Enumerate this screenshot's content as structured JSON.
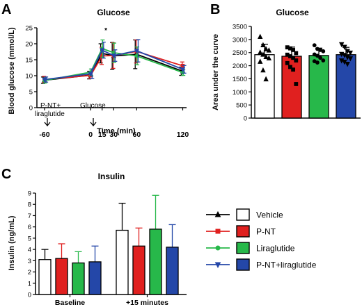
{
  "panels": {
    "a": "A",
    "b": "B",
    "c": "C"
  },
  "colors": {
    "vehicle": "#000000",
    "pnt": "#e0201f",
    "lira": "#27b84a",
    "combo": "#2447a8",
    "vehicle_fill": "#ffffff"
  },
  "legend": {
    "items": [
      {
        "name": "Vehicle",
        "color": "#000000",
        "fill": "#ffffff",
        "marker": "triangle-up"
      },
      {
        "name": "P-NT",
        "color": "#e0201f",
        "fill": "#e0201f",
        "marker": "square"
      },
      {
        "name": "Liraglutide",
        "color": "#27b84a",
        "fill": "#27b84a",
        "marker": "circle"
      },
      {
        "name": "P-NT+liraglutide",
        "color": "#2447a8",
        "fill": "#2447a8",
        "marker": "triangle-down"
      }
    ]
  },
  "chart_data": [
    {
      "type": "line",
      "title": "Glucose",
      "xlabel": "Time (min)",
      "ylabel": "Blood glucose (mmol/L)",
      "xlim": [
        -70,
        125
      ],
      "ylim": [
        0,
        25
      ],
      "xticks": [
        -60,
        0,
        15,
        30,
        60,
        120
      ],
      "yticks": [
        0,
        5,
        10,
        15,
        20,
        25
      ],
      "annotations": {
        "injection1": "P-NT+",
        "injection2": "liraglutide",
        "injection3": "Glucose",
        "significance": "*"
      },
      "x": [
        -60,
        0,
        15,
        30,
        60,
        120
      ],
      "series": [
        {
          "name": "Vehicle",
          "values": [
            8.6,
            10.2,
            17.0,
            16.2,
            16.7,
            11.4
          ],
          "errors": [
            1.0,
            1.2,
            3.0,
            4.2,
            4.5,
            1.3
          ]
        },
        {
          "name": "P-NT",
          "values": [
            8.8,
            10.1,
            16.2,
            16.3,
            17.6,
            13.1
          ],
          "errors": [
            1.0,
            1.0,
            2.7,
            4.0,
            3.6,
            1.2
          ]
        },
        {
          "name": "Liraglutide",
          "values": [
            8.5,
            11.1,
            18.5,
            17.2,
            16.2,
            11.0
          ],
          "errors": [
            0.8,
            1.0,
            2.7,
            3.0,
            2.8,
            0.9
          ]
        },
        {
          "name": "P-NT+liraglutide",
          "values": [
            8.8,
            10.6,
            18.0,
            16.3,
            17.8,
            12.0
          ],
          "errors": [
            0.8,
            1.5,
            2.5,
            1.8,
            3.5,
            1.2
          ]
        }
      ]
    },
    {
      "type": "bar",
      "title": "Glucose",
      "ylabel": "Area under the curve",
      "ylim": [
        0,
        3500
      ],
      "yticks": [
        0,
        500,
        1000,
        1500,
        2000,
        2500,
        3000,
        3500
      ],
      "categories": [
        "Vehicle",
        "P-NT",
        "Liraglutide",
        "P-NT+liraglutide"
      ],
      "values": [
        2420,
        2360,
        2390,
        2420
      ],
      "errors": [
        400,
        350,
        280,
        280
      ],
      "points": [
        [
          3100,
          2780,
          2630,
          2580,
          2500,
          2420,
          2330,
          2280,
          2150,
          1820,
          1480
        ],
        [
          2700,
          2660,
          2600,
          2480,
          2420,
          2360,
          2300,
          2200,
          2100,
          1950,
          1850,
          1300
        ],
        [
          2780,
          2640,
          2600,
          2550,
          2430,
          2380,
          2300,
          2200,
          2170,
          2120
        ],
        [
          2820,
          2720,
          2560,
          2500,
          2450,
          2410,
          2330,
          2280,
          2200,
          2150,
          2070
        ]
      ]
    },
    {
      "type": "bar",
      "title": "Insulin",
      "ylabel": "Insulin (ng/mL)",
      "ylim": [
        0,
        9
      ],
      "yticks": [
        0,
        1,
        2,
        3,
        4,
        5,
        6,
        7,
        8,
        9
      ],
      "categories": [
        "Baseline",
        "+15 minutes"
      ],
      "series": [
        {
          "name": "Vehicle",
          "values": [
            3.1,
            5.7
          ],
          "errors": [
            0.9,
            2.4
          ]
        },
        {
          "name": "P-NT",
          "values": [
            3.2,
            4.3
          ],
          "errors": [
            1.3,
            1.6
          ]
        },
        {
          "name": "Liraglutide",
          "values": [
            2.8,
            5.8
          ],
          "errors": [
            1.0,
            3.0
          ]
        },
        {
          "name": "P-NT+liraglutide",
          "values": [
            2.9,
            4.2
          ],
          "errors": [
            1.4,
            2.0
          ]
        }
      ]
    }
  ]
}
